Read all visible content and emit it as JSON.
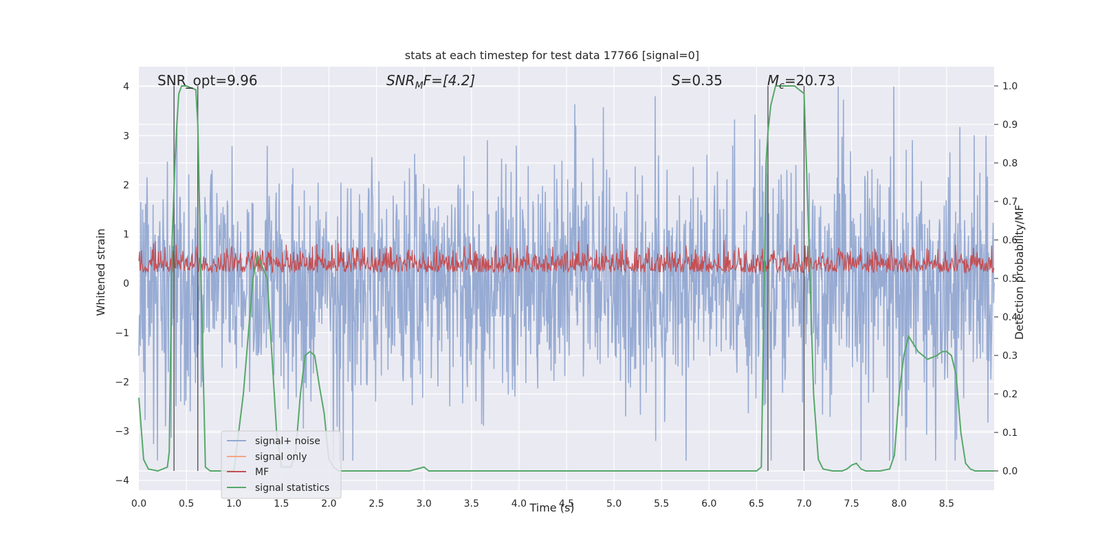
{
  "chart_data": {
    "type": "line",
    "title": "stats at each timestep for test data 17766 [signal=0]",
    "xlabel": "Time (s)",
    "ylabel": "Whitened strain",
    "y2label": "Detection probability/MF",
    "xlim": [
      0.0,
      9.0
    ],
    "ylim": [
      -4.2,
      4.4
    ],
    "y2lim": [
      -0.05,
      1.05
    ],
    "xticks": [
      0.0,
      0.5,
      1.0,
      1.5,
      2.0,
      2.5,
      3.0,
      3.5,
      4.0,
      4.5,
      5.0,
      5.5,
      6.0,
      6.5,
      7.0,
      7.5,
      8.0,
      8.5
    ],
    "xtick_labels": [
      "0.0",
      "0.5",
      "1.0",
      "1.5",
      "2.0",
      "2.5",
      "3.0",
      "3.5",
      "4.0",
      "4.5",
      "5.0",
      "5.5",
      "6.0",
      "6.5",
      "7.0",
      "7.5",
      "8.0",
      "8.5"
    ],
    "yticks": [
      4,
      3,
      2,
      1,
      0,
      -1,
      -2,
      -3,
      -4
    ],
    "ytick_labels": [
      "4",
      "3",
      "2",
      "1",
      "0",
      "−1",
      "−2",
      "−3",
      "−4"
    ],
    "y2ticks": [
      1.0,
      0.9,
      0.8,
      0.7,
      0.6,
      0.5,
      0.4,
      0.3,
      0.2,
      0.1,
      0.0
    ],
    "y2tick_labels": [
      "1.0",
      "0.9",
      "0.8",
      "0.7",
      "0.6",
      "0.5",
      "0.4",
      "0.3",
      "0.2",
      "0.1",
      "0.0"
    ],
    "grid": true,
    "legend_position": "lower-left",
    "annotations": {
      "snr_opt": "SNR_opt=9.96",
      "snr_mf_main": "SNR",
      "snr_mf_sub": "M",
      "snr_mf_rest": "F=[4.2]",
      "s_main": "S",
      "s_rest": "=0.35",
      "mc_main": "M",
      "mc_sub": "c",
      "mc_rest": "=20.73"
    },
    "vertical_lines_x": [
      0.37,
      0.62,
      6.62,
      7.0
    ],
    "series": [
      {
        "name": "signal+ noise",
        "color": "#92a8d1",
        "axis": "left",
        "description_range": [
          -3.6,
          4.0
        ],
        "noise_amplitude_typical": 1.2
      },
      {
        "name": "signal only",
        "color": "#f4a582",
        "axis": "left",
        "values_flat": 0
      },
      {
        "name": "MF",
        "color": "#c44e52",
        "axis": "right",
        "range": [
          0.49,
          0.6
        ]
      },
      {
        "name": "signal statistics",
        "color": "#55a868",
        "axis": "right",
        "x": [
          0.0,
          0.05,
          0.1,
          0.2,
          0.3,
          0.32,
          0.35,
          0.38,
          0.4,
          0.42,
          0.45,
          0.5,
          0.55,
          0.6,
          0.62,
          0.65,
          0.7,
          0.75,
          0.8,
          0.9,
          1.0,
          1.1,
          1.2,
          1.25,
          1.3,
          1.35,
          1.4,
          1.45,
          1.5,
          1.6,
          1.65,
          1.7,
          1.75,
          1.8,
          1.85,
          1.9,
          1.95,
          2.0,
          2.05,
          2.1,
          2.2,
          2.5,
          2.85,
          3.0,
          3.05,
          3.5,
          4.0,
          5.0,
          6.0,
          6.5,
          6.55,
          6.6,
          6.62,
          6.65,
          6.7,
          6.75,
          6.8,
          6.9,
          6.95,
          7.0,
          7.05,
          7.1,
          7.15,
          7.2,
          7.3,
          7.4,
          7.45,
          7.5,
          7.55,
          7.6,
          7.65,
          7.7,
          7.8,
          7.9,
          7.95,
          8.0,
          8.05,
          8.1,
          8.15,
          8.2,
          8.25,
          8.3,
          8.4,
          8.45,
          8.5,
          8.55,
          8.6,
          8.65,
          8.7,
          8.75,
          8.8,
          8.9,
          9.0
        ],
        "y": [
          0.19,
          0.03,
          0.005,
          0.0,
          0.01,
          0.05,
          0.6,
          0.8,
          0.9,
          0.98,
          1.0,
          1.0,
          0.995,
          0.99,
          0.9,
          0.55,
          0.01,
          0.0,
          0.0,
          0.0,
          0.0,
          0.2,
          0.5,
          0.56,
          0.53,
          0.5,
          0.3,
          0.1,
          0.01,
          0.01,
          0.05,
          0.2,
          0.3,
          0.31,
          0.3,
          0.22,
          0.15,
          0.03,
          0.01,
          0.0,
          0.0,
          0.0,
          0.0,
          0.01,
          0.0,
          0.0,
          0.0,
          0.0,
          0.0,
          0.0,
          0.01,
          0.8,
          0.88,
          0.95,
          1.0,
          1.0,
          1.0,
          1.0,
          0.99,
          0.98,
          0.6,
          0.2,
          0.03,
          0.005,
          0.0,
          0.0,
          0.005,
          0.015,
          0.02,
          0.005,
          0.0,
          0.0,
          0.0,
          0.005,
          0.04,
          0.2,
          0.3,
          0.35,
          0.33,
          0.31,
          0.3,
          0.29,
          0.3,
          0.31,
          0.31,
          0.3,
          0.25,
          0.1,
          0.02,
          0.005,
          0.0,
          0.0,
          0.0
        ]
      }
    ]
  }
}
